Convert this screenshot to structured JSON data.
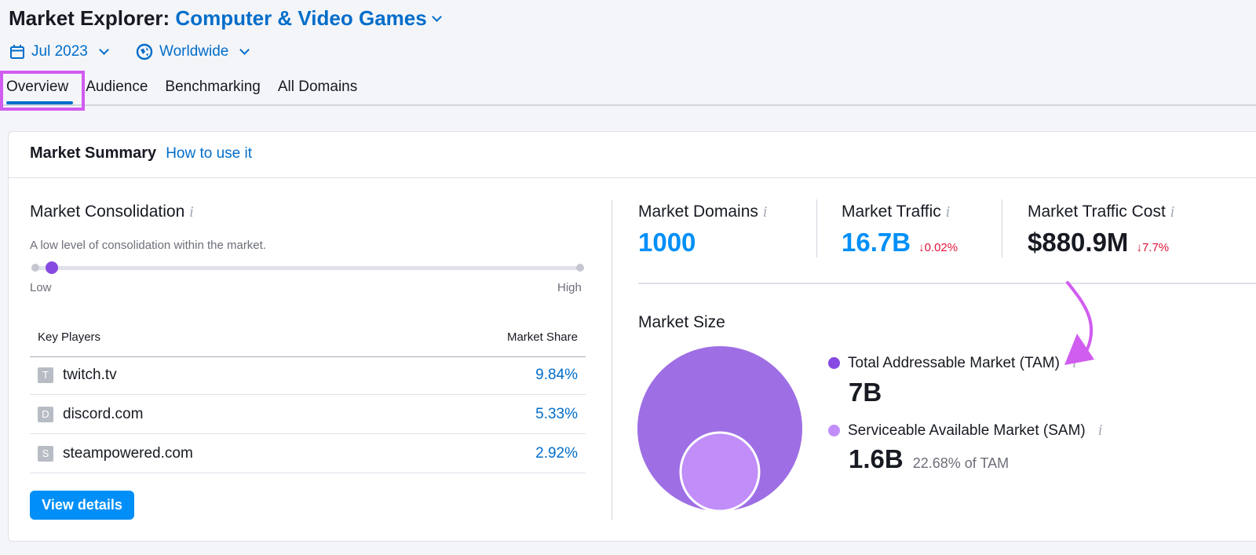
{
  "header": {
    "title_prefix": "Market Explorer:",
    "category": "Computer & Video Games",
    "date": "Jul 2023",
    "region": "Worldwide"
  },
  "tabs": [
    {
      "label": "Overview",
      "active": true
    },
    {
      "label": "Audience"
    },
    {
      "label": "Benchmarking"
    },
    {
      "label": "All Domains"
    }
  ],
  "summary": {
    "title": "Market Summary",
    "help_link": "How to use it"
  },
  "consolidation": {
    "title": "Market Consolidation",
    "description": "A low level of consolidation within the market.",
    "low_label": "Low",
    "high_label": "High",
    "level": 0.03
  },
  "key_players": {
    "col1": "Key Players",
    "col2": "Market Share",
    "rows": [
      {
        "initial": "T",
        "domain": "twitch.tv",
        "share": "9.84%"
      },
      {
        "initial": "D",
        "domain": "discord.com",
        "share": "5.33%"
      },
      {
        "initial": "S",
        "domain": "steampowered.com",
        "share": "2.92%"
      }
    ]
  },
  "view_details": "View details",
  "metrics": {
    "domains": {
      "label": "Market Domains",
      "value": "1000"
    },
    "traffic": {
      "label": "Market Traffic",
      "value": "16.7B",
      "change": "↓0.02%"
    },
    "cost": {
      "label": "Market Traffic Cost",
      "value": "$880.9M",
      "change": "↓7.7%"
    }
  },
  "market_size": {
    "title": "Market Size",
    "tam_label": "Total Addressable Market (TAM)",
    "tam_value": "7B",
    "sam_label": "Serviceable Available Market (SAM)",
    "sam_value": "1.6B",
    "sam_pct": "22.68% of TAM",
    "tam_color": "#9e6ee4",
    "sam_color": "#c08df9"
  },
  "colors": {
    "accent": "#006dca",
    "highlight": "#d15cf0",
    "negative": "#e0153a"
  }
}
